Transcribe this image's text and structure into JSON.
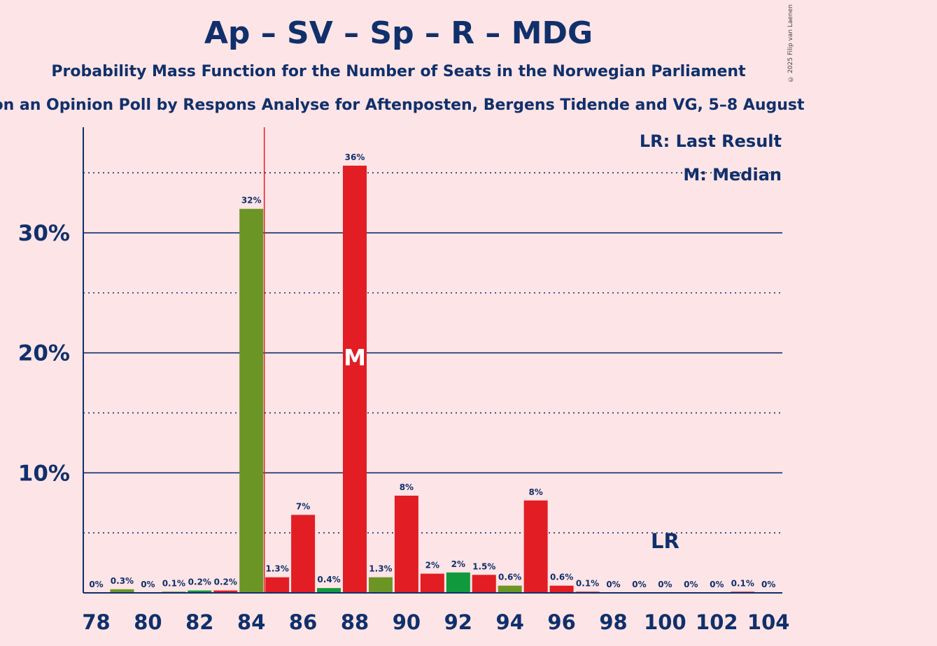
{
  "title": "Ap – SV – Sp – R – MDG",
  "subtitle": "Probability Mass Function for the Number of Seats in the Norwegian Parliament",
  "subtitle2": "on an Opinion Poll by Respons Analyse for Aftenposten, Bergens Tidende and VG, 5–8 August",
  "copyright": "© 2025 Filip van Laenen",
  "colors": {
    "background": "#FDE4E6",
    "text": "#10306B",
    "red": "#E21D24",
    "olive": "#6B9626",
    "green": "#109A3D",
    "last_result_line": "#E21D24"
  },
  "chart_data": {
    "type": "bar",
    "x": [
      78,
      79,
      80,
      81,
      82,
      83,
      84,
      85,
      86,
      87,
      88,
      89,
      90,
      91,
      92,
      93,
      94,
      95,
      96,
      97,
      98,
      99,
      100,
      101,
      102,
      103,
      104
    ],
    "values": [
      0,
      0.3,
      0,
      0.1,
      0.2,
      0.2,
      32,
      1.3,
      6.5,
      0.4,
      35.6,
      1.3,
      8.1,
      1.6,
      1.7,
      1.5,
      0.6,
      7.7,
      0.6,
      0.1,
      0,
      0,
      0,
      0,
      0,
      0.1,
      0
    ],
    "data_labels": [
      "0%",
      "0.3%",
      "0%",
      "0.1%",
      "0.2%",
      "0.2%",
      "32%",
      "1.3%",
      "7%",
      "0.4%",
      "36%",
      "1.3%",
      "8%",
      "2%",
      "2%",
      "1.5%",
      "0.6%",
      "8%",
      "0.6%",
      "0.1%",
      "0%",
      "0%",
      "0%",
      "0%",
      "0%",
      "0.1%",
      "0%"
    ],
    "bar_colors": [
      "olive",
      "olive",
      "olive",
      "olive",
      "green",
      "red",
      "olive",
      "red",
      "red",
      "green",
      "red",
      "olive",
      "red",
      "red",
      "green",
      "red",
      "olive",
      "red",
      "red",
      "red",
      "red",
      "red",
      "red",
      "red",
      "red",
      "red",
      "red"
    ],
    "x_tick_labels": [
      "78",
      "80",
      "82",
      "84",
      "86",
      "88",
      "90",
      "92",
      "94",
      "96",
      "98",
      "100",
      "102",
      "104"
    ],
    "x_tick_values": [
      78,
      80,
      82,
      84,
      86,
      88,
      90,
      92,
      94,
      96,
      98,
      100,
      102,
      104
    ],
    "y_tick_labels": [
      "10%",
      "20%",
      "30%"
    ],
    "y_tick_values": [
      10,
      20,
      30
    ],
    "ylim": [
      0,
      38.8
    ],
    "grid_solid": [
      10,
      20,
      30
    ],
    "grid_dotted": [
      5,
      15,
      25,
      35
    ],
    "last_result_seat": 84.5,
    "median_seat": 88,
    "median_mark": "M",
    "lr_mark": "LR",
    "lr_mark_seat": 100,
    "legend": {
      "lr": "LR: Last Result",
      "m": "M: Median"
    }
  }
}
